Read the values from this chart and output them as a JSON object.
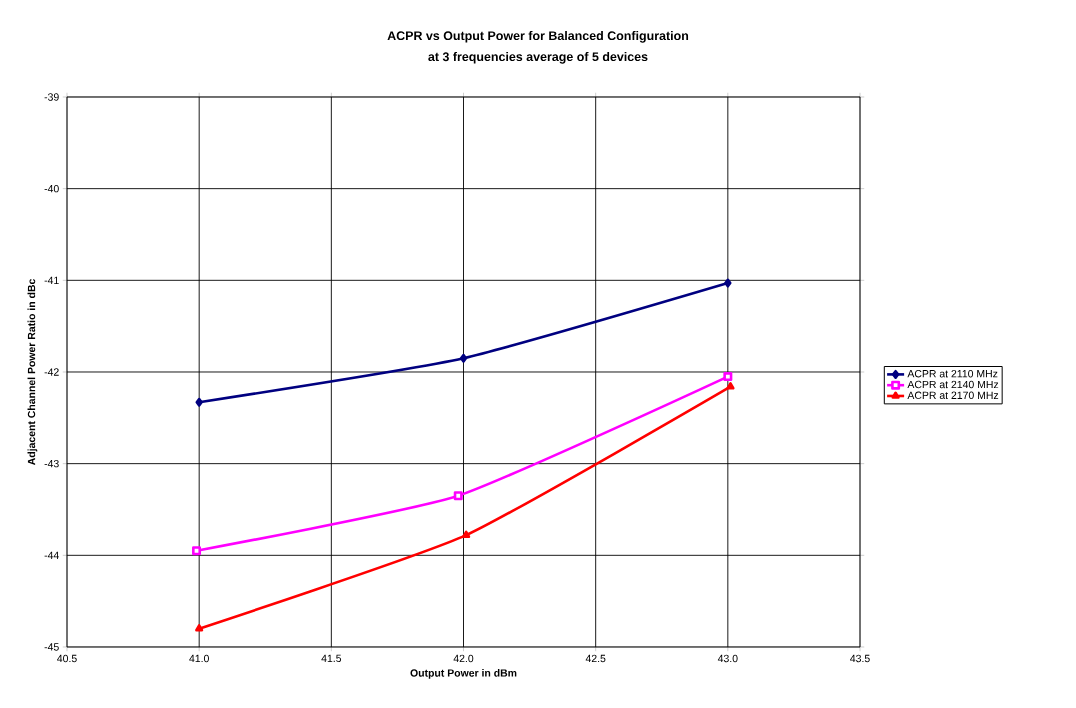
{
  "chart_data": {
    "type": "line",
    "title": "ACPR vs Output Power for Balanced Configuration",
    "subtitle": "at 3 frequencies average of 5 devices",
    "xlabel": "Output Power in dBm",
    "ylabel": "Adjacent Channel Power Ratio in dBc",
    "xlim": [
      40.5,
      43.5
    ],
    "xticks": [
      40.5,
      {
        "value": 41,
        "label": "41.0"
      },
      41.5,
      {
        "value": 42,
        "label": "42.0"
      },
      42.5,
      {
        "value": 43,
        "label": "43.0"
      },
      43.5
    ],
    "ylim": [
      -45,
      -39
    ],
    "yticks": [
      -45,
      -44,
      -43,
      -42,
      -41,
      -40,
      -39
    ],
    "grid": true,
    "legend": "right",
    "series": [
      {
        "name": "ACPR at 2110 MHz",
        "color": "#000080",
        "marker": "diamond",
        "x": [
          41.0,
          42.0,
          43.0
        ],
        "values": [
          -42.33,
          -41.85,
          -41.03
        ]
      },
      {
        "name": "ACPR at 2140 MHz",
        "color": "#ff00ff",
        "marker": "square",
        "x": [
          40.99,
          41.98,
          43.0
        ],
        "values": [
          -43.95,
          -43.35,
          -42.05
        ]
      },
      {
        "name": "ACPR at 2170 MHz",
        "color": "#ff0000",
        "marker": "triangle",
        "x": [
          41.0,
          42.01,
          43.01
        ],
        "values": [
          -44.8,
          -43.78,
          -42.16
        ]
      }
    ]
  }
}
